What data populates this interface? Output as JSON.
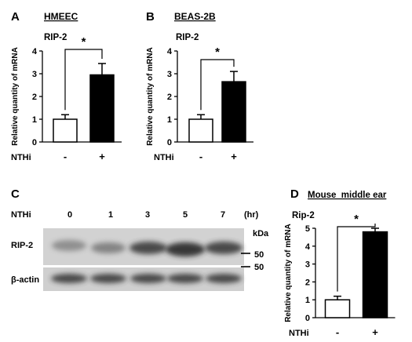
{
  "panels": {
    "A": {
      "letter": "A",
      "cell": "HMEEC",
      "gene": "RIP-2"
    },
    "B": {
      "letter": "B",
      "cell": "BEAS-2B",
      "gene": "RIP-2"
    },
    "C": {
      "letter": "C",
      "treatment_label": "NTHi",
      "timepoints": [
        "0",
        "1",
        "3",
        "5",
        "7"
      ],
      "time_unit": "(hr)",
      "kda_label": "kDa",
      "marker_upper": "50",
      "marker_lower": "50",
      "rows": [
        "RIP-2",
        "β-actin"
      ]
    },
    "D": {
      "letter": "D",
      "cell": "Mouse  middle ear",
      "gene": "Rip-2"
    }
  },
  "colors": {
    "control": "#ffffff",
    "nthi": "#000000",
    "blot_background": "#cfcfcf"
  },
  "chart_data": [
    {
      "type": "bar",
      "title": "HMEEC",
      "subtitle": "RIP-2",
      "ylabel": "Relative quantity of mRNA",
      "xlabel": "NTHi",
      "categories": [
        "-",
        "+"
      ],
      "values": [
        1.0,
        2.95
      ],
      "errors": [
        0.2,
        0.5
      ],
      "ylim": [
        0,
        4
      ],
      "yticks": [
        "0",
        "1",
        "2",
        "3",
        "4"
      ],
      "significance": "*"
    },
    {
      "type": "bar",
      "title": "BEAS-2B",
      "subtitle": "RIP-2",
      "ylabel": "Relative quantity of mRNA",
      "xlabel": "NTHi",
      "categories": [
        "-",
        "+"
      ],
      "values": [
        1.0,
        2.65
      ],
      "errors": [
        0.2,
        0.45
      ],
      "ylim": [
        0,
        4
      ],
      "yticks": [
        "0",
        "1",
        "2",
        "3",
        "4"
      ],
      "significance": "*"
    },
    {
      "type": "bar",
      "title": "Mouse  middle ear",
      "subtitle": "Rip-2",
      "ylabel": "Relative quantity of mRNA",
      "xlabel": "NTHi",
      "categories": [
        "-",
        "+"
      ],
      "values": [
        1.0,
        4.8
      ],
      "errors": [
        0.2,
        0.2
      ],
      "ylim": [
        0,
        5
      ],
      "yticks": [
        "0",
        "1",
        "2",
        "3",
        "4",
        "5"
      ],
      "significance": "*"
    }
  ]
}
